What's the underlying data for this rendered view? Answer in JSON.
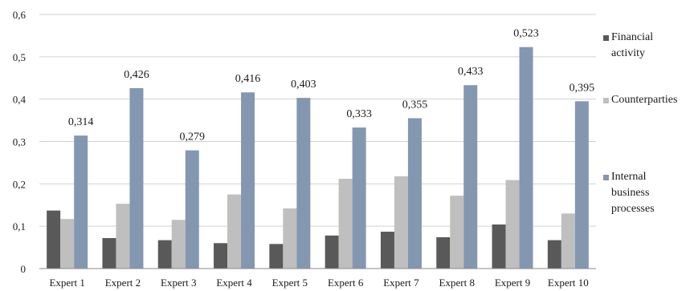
{
  "chart_data": {
    "type": "bar",
    "title": "",
    "xlabel": "",
    "ylabel": "",
    "ylim": [
      0,
      0.6
    ],
    "yticks": [
      "0",
      "0,1",
      "0,2",
      "0,3",
      "0,4",
      "0,5",
      "0,6"
    ],
    "grid": "horizontal",
    "legend_position": "right",
    "categories": [
      "Expert 1",
      "Expert 2",
      "Expert 3",
      "Expert 4",
      "Expert 5",
      "Expert 6",
      "Expert 7",
      "Expert 8",
      "Expert 9",
      "Expert 10"
    ],
    "series": [
      {
        "name": "Financial activity",
        "legend_lines": [
          "Financial",
          "activity"
        ],
        "color": "#595959",
        "values": [
          0.137,
          0.072,
          0.067,
          0.06,
          0.058,
          0.078,
          0.087,
          0.074,
          0.104,
          0.067
        ]
      },
      {
        "name": "Counterparties",
        "legend_lines": [
          "Counterparties"
        ],
        "color": "#bfbfbf",
        "values": [
          0.117,
          0.153,
          0.115,
          0.175,
          0.142,
          0.212,
          0.218,
          0.172,
          0.209,
          0.13
        ]
      },
      {
        "name": "Internal business processes",
        "legend_lines": [
          "Internal",
          "business",
          "processes"
        ],
        "color": "#8497b0",
        "values": [
          0.314,
          0.426,
          0.279,
          0.416,
          0.403,
          0.333,
          0.355,
          0.433,
          0.523,
          0.395
        ],
        "data_labels": [
          "0,314",
          "0,426",
          "0,279",
          "0,416",
          "0,403",
          "0,333",
          "0,355",
          "0,433",
          "0,523",
          "0,395"
        ]
      }
    ]
  }
}
